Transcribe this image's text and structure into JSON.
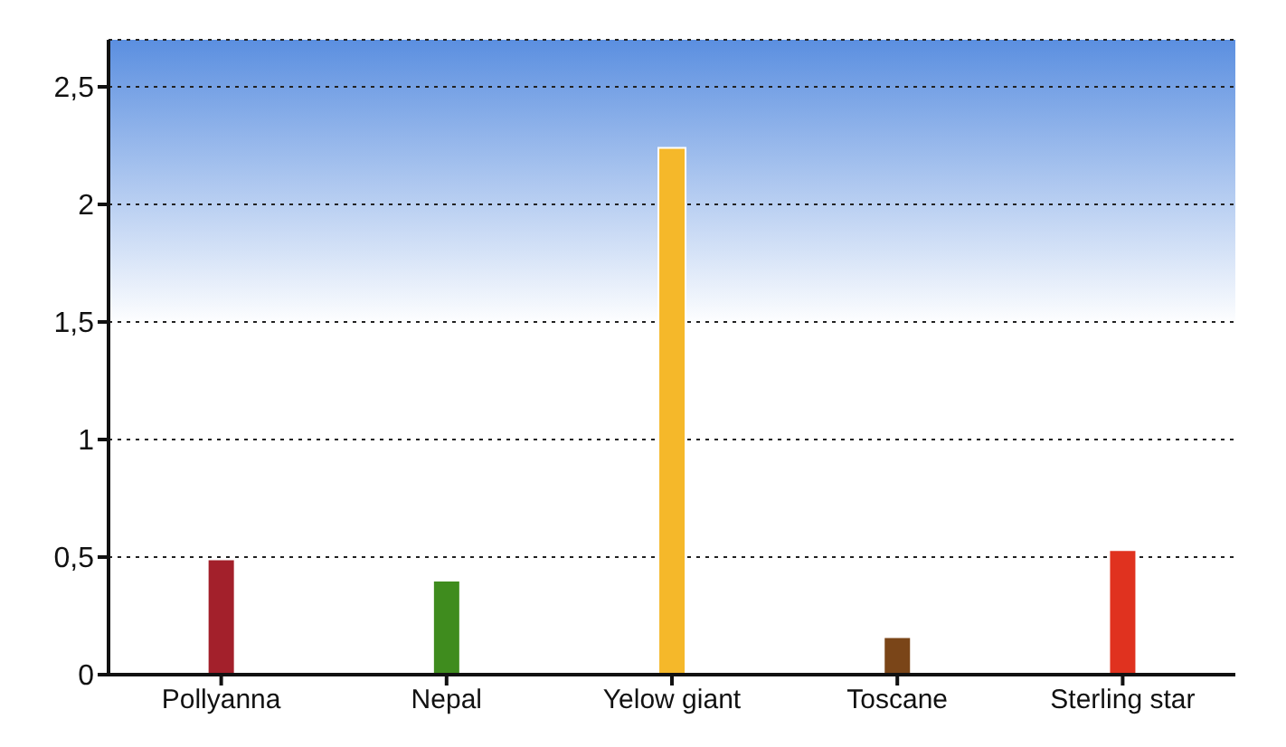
{
  "chart_data": {
    "type": "bar",
    "categories": [
      "Pollyanna",
      "Nepal",
      "Yelow giant",
      "Toscane",
      "Sterling star"
    ],
    "values": [
      0.49,
      0.4,
      2.24,
      0.16,
      0.53
    ],
    "colors": [
      "#a3202b",
      "#3f8c1e",
      "#f5b82a",
      "#7a4518",
      "#e0321f"
    ],
    "ylim": [
      0,
      2.7
    ],
    "yticks": [
      0,
      {
        "value": 0.5,
        "label": "0,5"
      },
      1,
      {
        "value": 1.5,
        "label": "1,5"
      },
      2,
      {
        "value": 2.5,
        "label": "2,5"
      }
    ],
    "grid": "y"
  }
}
